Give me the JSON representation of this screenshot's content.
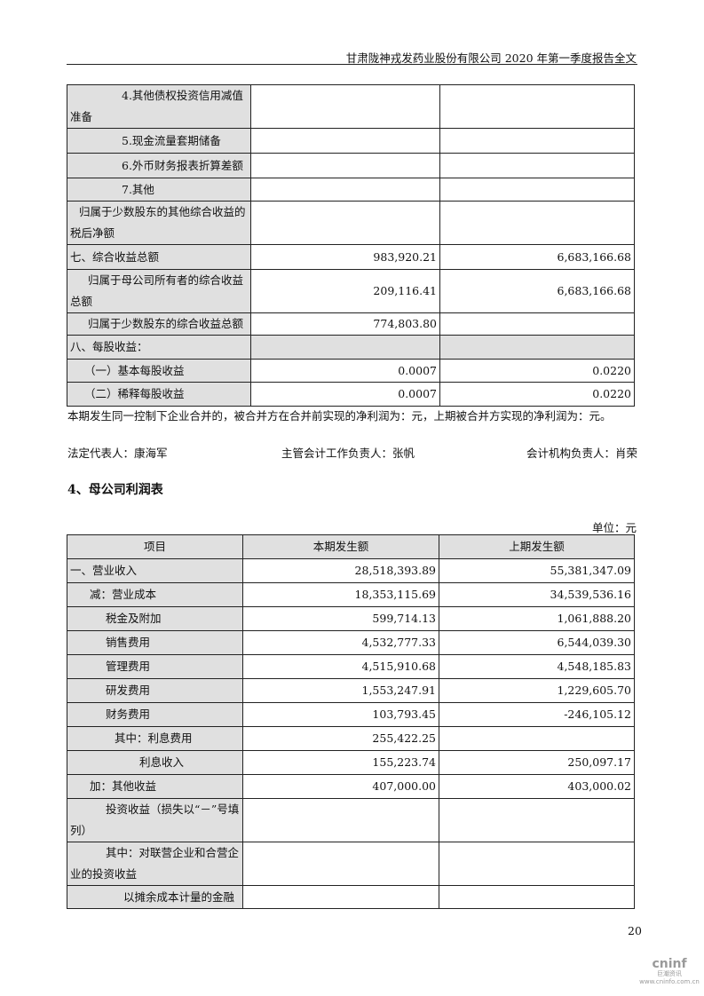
{
  "header": {
    "title": "甘肃陇神戎发药业股份有限公司 2020 年第一季度报告全文"
  },
  "table1": {
    "rows": [
      {
        "label": "4.其他债权投资信用减值准备",
        "current": "",
        "previous": "",
        "indent": 58,
        "h": 48
      },
      {
        "label": "5.现金流量套期储备",
        "current": "",
        "previous": "",
        "indent": 58,
        "h": 28
      },
      {
        "label": "6.外币财务报表折算差额",
        "current": "",
        "previous": "",
        "indent": 58,
        "h": 28
      },
      {
        "label": "7.其他",
        "current": "",
        "previous": "",
        "indent": 58,
        "h": 26
      },
      {
        "label": "归属于少数股东的其他综合收益的税后净额",
        "current": "",
        "previous": "",
        "indent": 10,
        "h": 47
      },
      {
        "label": "七、综合收益总额",
        "current": "983,920.21",
        "previous": "6,683,166.68",
        "indent": 0,
        "h": 28
      },
      {
        "label": "归属于母公司所有者的综合收益总额",
        "current": "209,116.41",
        "previous": "6,683,166.68",
        "indent": 20,
        "h": 48
      },
      {
        "label": "归属于少数股东的综合收益总额",
        "current": "774,803.80",
        "previous": "",
        "indent": 20,
        "h": 25
      },
      {
        "label": "八、每股收益：",
        "current": "",
        "previous": "",
        "indent": 0,
        "h": 27,
        "gray": true
      },
      {
        "label": "（一）基本每股收益",
        "current": "0.0007",
        "previous": "0.0220",
        "indent": 16,
        "h": 26
      },
      {
        "label": "（二）稀释每股收益",
        "current": "0.0007",
        "previous": "0.0220",
        "indent": 16,
        "h": 27
      }
    ]
  },
  "note": "本期发生同一控制下企业合并的，被合并方在合并前实现的净利润为：元，上期被合并方实现的净利润为：元。",
  "signatures": {
    "legal_rep": "法定代表人：康海军",
    "accounting_head": "主管会计工作负责人：张帆",
    "accounting_org_head": "会计机构负责人：肖荣"
  },
  "section_title": "4、母公司利润表",
  "unit": "单位：元",
  "table2": {
    "headers": [
      "项目",
      "本期发生额",
      "上期发生额"
    ],
    "rows": [
      {
        "label": "一、营业收入",
        "current": "28,518,393.89",
        "previous": "55,381,347.09",
        "indent": 0,
        "h": 27
      },
      {
        "label": "减：营业成本",
        "current": "18,353,115.69",
        "previous": "34,539,536.16",
        "indent": 22,
        "h": 27
      },
      {
        "label": "税金及附加",
        "current": "599,714.13",
        "previous": "1,061,888.20",
        "indent": 40,
        "h": 27
      },
      {
        "label": "销售费用",
        "current": "4,532,777.33",
        "previous": "6,544,039.30",
        "indent": 40,
        "h": 27
      },
      {
        "label": "管理费用",
        "current": "4,515,910.68",
        "previous": "4,548,185.83",
        "indent": 40,
        "h": 27
      },
      {
        "label": "研发费用",
        "current": "1,553,247.91",
        "previous": "1,229,605.70",
        "indent": 40,
        "h": 27
      },
      {
        "label": "财务费用",
        "current": "103,793.45",
        "previous": "-246,105.12",
        "indent": 40,
        "h": 27
      },
      {
        "label": "其中：利息费用",
        "current": "255,422.25",
        "previous": "",
        "indent": 50,
        "h": 27
      },
      {
        "label": "利息收入",
        "current": "155,223.74",
        "previous": "250,097.17",
        "indent": 78,
        "h": 27
      },
      {
        "label": "加：其他收益",
        "current": "407,000.00",
        "previous": "403,000.02",
        "indent": 22,
        "h": 27
      },
      {
        "label": "投资收益（损失以“－”号填列）",
        "current": "",
        "previous": "",
        "indent": 40,
        "h": 47
      },
      {
        "label": "其中：对联营企业和合营企业的投资收益",
        "current": "",
        "previous": "",
        "indent": 40,
        "h": 48
      },
      {
        "label": "以摊余成本计量的金融",
        "current": "",
        "previous": "",
        "indent": 60,
        "h": 26
      }
    ]
  },
  "page_number": "20",
  "logo": {
    "brand": "cninf",
    "cn": "巨潮资讯",
    "url": "www.cninfo.com.cn"
  }
}
